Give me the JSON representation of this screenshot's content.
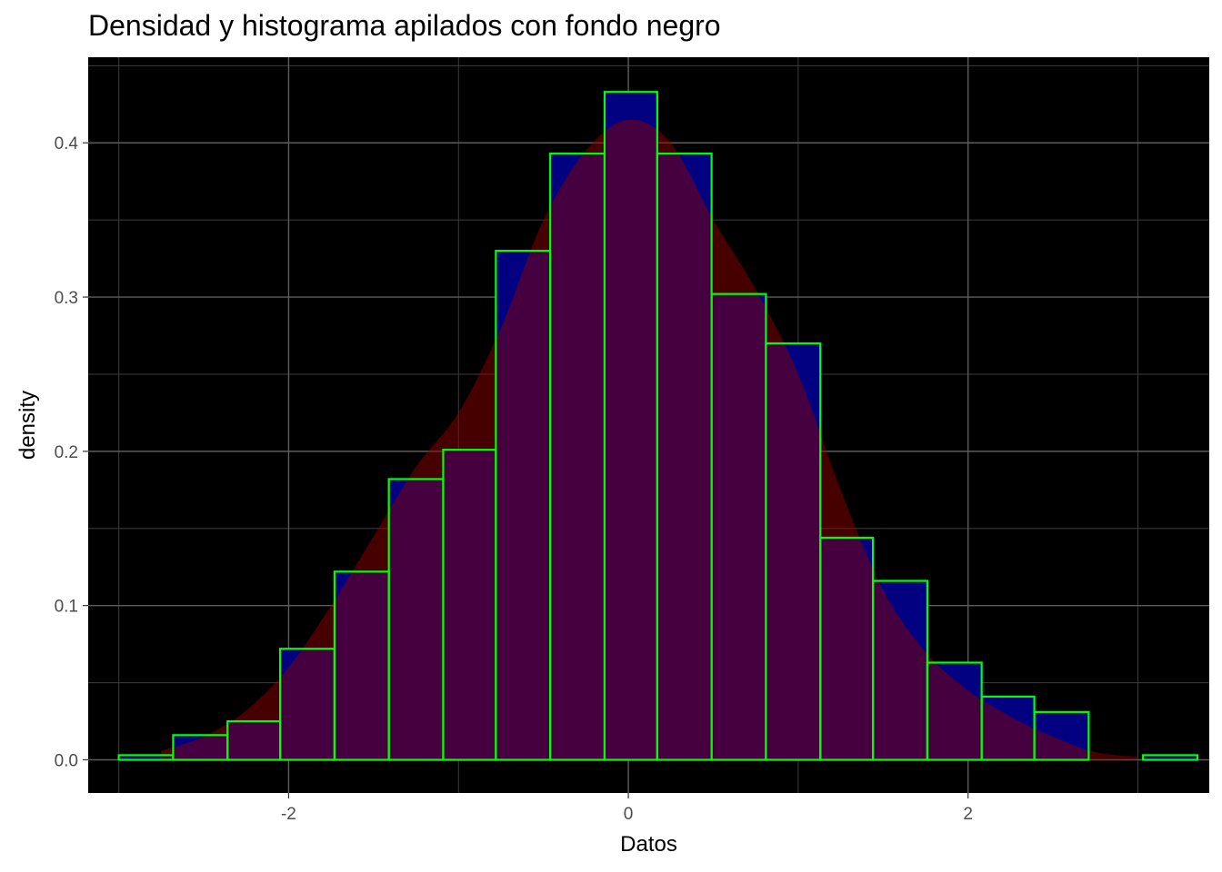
{
  "chart_data": {
    "type": "bar",
    "title": "Densidad y histograma apilados con fondo negro",
    "xlabel": "Datos",
    "ylabel": "density",
    "xlim": [
      -3.18,
      3.42
    ],
    "ylim": [
      -0.0215,
      0.4555
    ],
    "x_ticks": [
      -2,
      0,
      2
    ],
    "x_tick_labels": [
      "-2",
      "0",
      "2"
    ],
    "y_ticks": [
      0.0,
      0.1,
      0.2,
      0.3,
      0.4
    ],
    "y_tick_labels": [
      "0.0",
      "0.1",
      "0.2",
      "0.3",
      "0.4"
    ],
    "grid": true,
    "background": "#000000",
    "colors": {
      "histogram_fill": "#000080",
      "histogram_outline": "#00ff00",
      "density_fill": "#8b0000",
      "density_fill_opacity": 0.5
    },
    "histogram": {
      "name": "",
      "bin_edges": [
        -3.0,
        -2.68,
        -2.36,
        -2.05,
        -1.73,
        -1.41,
        -1.09,
        -0.78,
        -0.46,
        -0.14,
        0.17,
        0.49,
        0.81,
        1.13,
        1.44,
        1.76,
        2.08,
        2.39,
        2.71,
        3.03,
        3.35
      ],
      "values": [
        0.003,
        0.016,
        0.025,
        0.072,
        0.122,
        0.182,
        0.201,
        0.33,
        0.393,
        0.433,
        0.393,
        0.302,
        0.27,
        0.144,
        0.116,
        0.063,
        0.041,
        0.031,
        0.0,
        0.003
      ]
    },
    "density": {
      "name": "",
      "x": [
        -2.75,
        -2.5,
        -2.25,
        -2.0,
        -1.75,
        -1.5,
        -1.25,
        -1.0,
        -0.75,
        -0.5,
        -0.25,
        0.0,
        0.25,
        0.5,
        0.75,
        1.0,
        1.25,
        1.5,
        1.75,
        2.0,
        2.25,
        2.5,
        2.75,
        3.0
      ],
      "y": [
        0.006,
        0.015,
        0.032,
        0.06,
        0.1,
        0.145,
        0.19,
        0.225,
        0.28,
        0.35,
        0.395,
        0.415,
        0.4,
        0.35,
        0.305,
        0.25,
        0.175,
        0.11,
        0.07,
        0.045,
        0.028,
        0.015,
        0.005,
        0.002
      ]
    }
  }
}
